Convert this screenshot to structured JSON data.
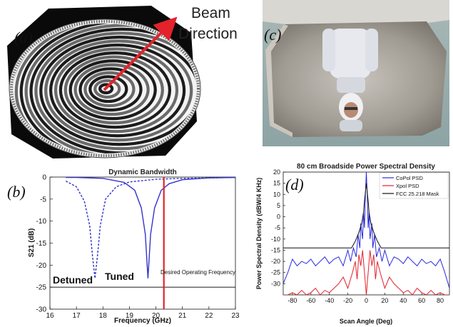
{
  "panel_labels": {
    "a": "(a)",
    "b": "(b)",
    "c": "(c)",
    "d": "(d)"
  },
  "panel_a": {
    "beam_line1": "Beam",
    "beam_line2": "Direction",
    "colors": {
      "arrow": "#e4222b"
    }
  },
  "chart_data": [
    {
      "type": "line",
      "title": "Dynamic Bandwidth",
      "xlabel": "Frequency (GHz)",
      "ylabel": "S21 (dB)",
      "xlim": [
        16,
        23
      ],
      "ylim": [
        -30,
        0
      ],
      "x_ticks": [
        "16",
        "17",
        "18",
        "19",
        "20",
        "21",
        "22",
        "23"
      ],
      "y_ticks": [
        "0",
        "-5",
        "-10",
        "-15",
        "-20",
        "-25",
        "-30"
      ],
      "grid": false,
      "series": [
        {
          "name": "Detuned",
          "style": "dashed",
          "color": "#3333cc",
          "x": [
            16.6,
            17.0,
            17.3,
            17.5,
            17.6,
            17.7,
            17.8,
            17.9,
            18.1,
            18.5,
            19.0,
            20.0,
            21.0,
            22.0,
            23.0
          ],
          "y": [
            -0.9,
            -2.2,
            -5.5,
            -11.0,
            -17.5,
            -23.0,
            -17.5,
            -11.0,
            -5.0,
            -2.2,
            -1.1,
            -0.5,
            -0.3,
            -0.2,
            -0.1
          ]
        },
        {
          "name": "Tuned",
          "style": "solid",
          "color": "#3333cc",
          "x": [
            16.6,
            17.0,
            18.0,
            18.8,
            19.2,
            19.45,
            19.6,
            19.7,
            19.8,
            19.95,
            20.2,
            20.5,
            21.0,
            22.0,
            23.0
          ],
          "y": [
            -0.1,
            -0.1,
            -0.3,
            -1.2,
            -3.0,
            -7.0,
            -13.0,
            -23.0,
            -13.0,
            -7.0,
            -3.0,
            -1.5,
            -0.6,
            -0.2,
            -0.1
          ]
        }
      ],
      "vertical_marker": {
        "x": 20.3,
        "color": "#e4222b",
        "label": "Desired Operating Frequency"
      },
      "annotations": [
        "Detuned",
        "Tuned"
      ],
      "extra_lines": [
        {
          "y": -25,
          "color": "#000000"
        }
      ]
    },
    {
      "type": "line",
      "title": "80 cm Broadside Power Spectral Density",
      "xlabel": "Scan Angle (Deg)",
      "ylabel": "Power Spectral Density (dBW/4 KHz)",
      "xlim": [
        -90,
        90
      ],
      "ylim": [
        -35,
        20
      ],
      "x_ticks": [
        "-80",
        "-60",
        "-40",
        "-20",
        "0",
        "20",
        "40",
        "60",
        "80"
      ],
      "y_ticks": [
        "20",
        "15",
        "10",
        "5",
        "0",
        "-5",
        "-10",
        "-15",
        "-20",
        "-25",
        "-30"
      ],
      "legend": {
        "placement": "top-right",
        "entries": [
          "CoPol PSD",
          "Xpol PSD",
          "FCC 25.218 Mask"
        ]
      },
      "series": [
        {
          "name": "CoPol PSD",
          "color": "#2a2adf",
          "x": [
            -90,
            -85,
            -80,
            -75,
            -70,
            -65,
            -60,
            -55,
            -50,
            -45,
            -40,
            -35,
            -30,
            -25,
            -20,
            -17,
            -14,
            -11,
            -9,
            -7,
            -6,
            -4,
            -3,
            -2,
            -1,
            0,
            1,
            2,
            3,
            4,
            6,
            7,
            9,
            11,
            14,
            17,
            20,
            25,
            30,
            35,
            40,
            45,
            50,
            55,
            60,
            65,
            70,
            75,
            80,
            85,
            90
          ],
          "y": [
            -30,
            -25,
            -19,
            -22,
            -20,
            -21,
            -19,
            -22,
            -20,
            -18,
            -21,
            -19,
            -18,
            -22,
            -15,
            -20,
            -14,
            -18,
            -8,
            -14,
            -3,
            -10,
            2,
            -5,
            10,
            20,
            10,
            -5,
            2,
            -10,
            -3,
            -14,
            -8,
            -18,
            -14,
            -20,
            -15,
            -22,
            -18,
            -19,
            -21,
            -18,
            -20,
            -22,
            -19,
            -21,
            -20,
            -22,
            -19,
            -25,
            -32
          ]
        },
        {
          "name": "Xpol PSD",
          "color": "#e4222b",
          "x": [
            -90,
            -85,
            -80,
            -75,
            -70,
            -65,
            -60,
            -55,
            -50,
            -45,
            -40,
            -35,
            -30,
            -25,
            -20,
            -15,
            -12,
            -10,
            -8,
            -6,
            -4,
            -2,
            0,
            2,
            4,
            6,
            8,
            10,
            12,
            15,
            20,
            25,
            30,
            35,
            40,
            45,
            50,
            55,
            60,
            65,
            70,
            75,
            80,
            85,
            90
          ],
          "y": [
            -35,
            -35,
            -34,
            -35,
            -33,
            -35,
            -34,
            -32,
            -35,
            -33,
            -34,
            -32,
            -30,
            -27,
            -32,
            -25,
            -20,
            -28,
            -17,
            -22,
            -15,
            -25,
            -35,
            -25,
            -15,
            -22,
            -17,
            -28,
            -20,
            -25,
            -32,
            -27,
            -30,
            -32,
            -34,
            -33,
            -35,
            -32,
            -34,
            -35,
            -33,
            -35,
            -34,
            -35,
            -35
          ]
        },
        {
          "name": "FCC 25.218 Mask",
          "color": "#111111",
          "x": [
            -90,
            -16,
            -12,
            -8,
            -5,
            -3,
            -2,
            0,
            2,
            3,
            5,
            8,
            12,
            16,
            90
          ],
          "y": [
            -14,
            -14,
            -11,
            -7,
            -3,
            2,
            7,
            15,
            7,
            2,
            -3,
            -7,
            -11,
            -14,
            -14
          ]
        }
      ]
    }
  ]
}
